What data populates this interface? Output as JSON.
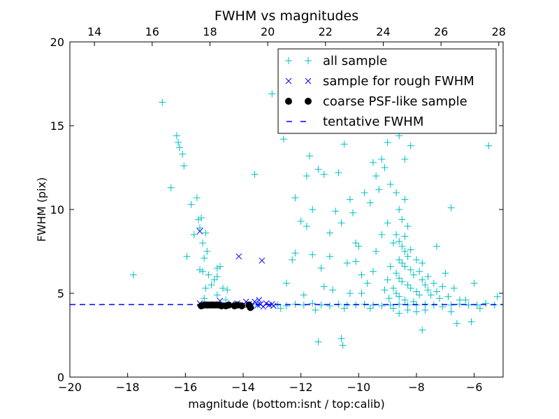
{
  "chart_data": {
    "type": "scatter",
    "title": "FWHM vs magnitudes",
    "xlabel": "magnitude (bottom:isnt / top:calib)",
    "ylabel": "FWHM (pix)",
    "xlim": [
      -20,
      -5
    ],
    "ylim": [
      0,
      20
    ],
    "x_ticks": [
      -20,
      -18,
      -16,
      -14,
      -12,
      -10,
      -8,
      -6
    ],
    "x_tick_labels": [
      "−20",
      "−18",
      "−16",
      "−14",
      "−12",
      "−10",
      "−8",
      "−6"
    ],
    "y_ticks": [
      0,
      5,
      10,
      15,
      20
    ],
    "y_tick_labels": [
      "0",
      "5",
      "10",
      "15",
      "20"
    ],
    "top_axis": {
      "offset": 33.15,
      "ticks": [
        14,
        16,
        18,
        20,
        22,
        24,
        26,
        28
      ],
      "tick_labels": [
        "14",
        "16",
        "18",
        "20",
        "22",
        "24",
        "26",
        "28"
      ]
    },
    "grid": false,
    "legend_position": "top-right",
    "colors": {
      "all": "#00bfbf",
      "rough": "#0000ff",
      "coarse": "#000000",
      "tentative": "#0000ff"
    },
    "series": [
      {
        "name": "all sample",
        "marker": "+",
        "points": [
          [
            -17.8,
            6.1
          ],
          [
            -16.8,
            16.4
          ],
          [
            -16.5,
            11.3
          ],
          [
            -16.3,
            14.4
          ],
          [
            -16.25,
            14.0
          ],
          [
            -16.2,
            13.7
          ],
          [
            -16.1,
            13.3
          ],
          [
            -16.05,
            12.6
          ],
          [
            -15.95,
            7.2
          ],
          [
            -15.8,
            10.3
          ],
          [
            -15.7,
            8.5
          ],
          [
            -15.6,
            10.7
          ],
          [
            -15.55,
            9.4
          ],
          [
            -15.5,
            8.9
          ],
          [
            -15.45,
            9.5
          ],
          [
            -15.4,
            8.0
          ],
          [
            -15.35,
            7.1
          ],
          [
            -15.3,
            8.6
          ],
          [
            -15.25,
            7.5
          ],
          [
            -15.5,
            6.4
          ],
          [
            -15.4,
            6.3
          ],
          [
            -15.3,
            5.3
          ],
          [
            -15.35,
            4.7
          ],
          [
            -15.0,
            5.8
          ],
          [
            -14.9,
            6.5
          ],
          [
            -14.8,
            6.6
          ],
          [
            -14.9,
            6.0
          ],
          [
            -14.7,
            5.3
          ],
          [
            -14.55,
            5.2
          ],
          [
            -15.2,
            6.1
          ],
          [
            -15.1,
            5.5
          ],
          [
            -14.9,
            4.9
          ],
          [
            -14.6,
            4.6
          ],
          [
            -13.6,
            12.1
          ],
          [
            -13.0,
            16.9
          ],
          [
            -12.6,
            14.2
          ],
          [
            -12.2,
            10.7
          ],
          [
            -12.0,
            9.3
          ],
          [
            -12.3,
            7.0
          ],
          [
            -12.5,
            5.6
          ],
          [
            -12.2,
            7.4
          ],
          [
            -11.8,
            9.0
          ],
          [
            -11.6,
            10.0
          ],
          [
            -11.8,
            12.0
          ],
          [
            -11.7,
            13.2
          ],
          [
            -11.4,
            12.4
          ],
          [
            -11.2,
            12.1
          ],
          [
            -11.6,
            7.3
          ],
          [
            -11.3,
            6.5
          ],
          [
            -11.2,
            5.4
          ],
          [
            -11.0,
            8.6
          ],
          [
            -11.0,
            7.2
          ],
          [
            -10.8,
            9.9
          ],
          [
            -10.7,
            12.2
          ],
          [
            -10.5,
            13.9
          ],
          [
            -10.6,
            9.2
          ],
          [
            -10.4,
            6.8
          ],
          [
            -10.3,
            5.0
          ],
          [
            -10.6,
            2.3
          ],
          [
            -10.55,
            1.9
          ],
          [
            -11.4,
            2.1
          ],
          [
            -10.3,
            10.6
          ],
          [
            -10.2,
            9.8
          ],
          [
            -10.1,
            8.0
          ],
          [
            -10.0,
            7.8
          ],
          [
            -9.9,
            6.1
          ],
          [
            -9.8,
            11.0
          ],
          [
            -9.6,
            10.4
          ],
          [
            -9.5,
            12.8
          ],
          [
            -9.4,
            12.0
          ],
          [
            -9.3,
            11.2
          ],
          [
            -9.2,
            13.0
          ],
          [
            -9.0,
            14.0
          ],
          [
            -9.1,
            12.5
          ],
          [
            -8.9,
            11.5
          ],
          [
            -8.8,
            15.3
          ],
          [
            -8.6,
            14.4
          ],
          [
            -8.4,
            13.0
          ],
          [
            -8.2,
            13.8
          ],
          [
            -9.4,
            7.5
          ],
          [
            -9.2,
            8.5
          ],
          [
            -9.0,
            9.2
          ],
          [
            -8.8,
            8.0
          ],
          [
            -9.7,
            5.6
          ],
          [
            -9.5,
            6.3
          ],
          [
            -9.9,
            5.0
          ],
          [
            -10.1,
            6.9
          ],
          [
            -10.9,
            5.2
          ],
          [
            -11.9,
            4.9
          ],
          [
            -8.7,
            8.5
          ],
          [
            -8.6,
            8.1
          ],
          [
            -8.5,
            7.8
          ],
          [
            -8.4,
            7.5
          ],
          [
            -8.3,
            7.2
          ],
          [
            -8.6,
            7.0
          ],
          [
            -8.5,
            6.8
          ],
          [
            -8.4,
            6.6
          ],
          [
            -8.2,
            6.4
          ],
          [
            -8.1,
            6.1
          ],
          [
            -8.7,
            6.2
          ],
          [
            -8.6,
            5.9
          ],
          [
            -8.5,
            5.7
          ],
          [
            -8.3,
            5.5
          ],
          [
            -8.2,
            5.3
          ],
          [
            -8.0,
            5.1
          ],
          [
            -7.9,
            4.9
          ],
          [
            -8.8,
            5.3
          ],
          [
            -8.7,
            5.0
          ],
          [
            -8.6,
            4.8
          ],
          [
            -8.4,
            4.6
          ],
          [
            -8.1,
            4.5
          ],
          [
            -7.8,
            5.8
          ],
          [
            -7.7,
            5.5
          ],
          [
            -7.6,
            5.2
          ],
          [
            -7.5,
            4.9
          ],
          [
            -7.9,
            6.3
          ],
          [
            -7.8,
            6.8
          ],
          [
            -8.0,
            7.0
          ],
          [
            -8.2,
            7.6
          ],
          [
            -8.4,
            8.4
          ],
          [
            -8.3,
            9.0
          ],
          [
            -8.5,
            9.4
          ],
          [
            -8.6,
            10.0
          ],
          [
            -8.4,
            10.6
          ],
          [
            -8.7,
            11.0
          ],
          [
            -7.6,
            6.0
          ],
          [
            -7.4,
            5.6
          ],
          [
            -7.3,
            5.1
          ],
          [
            -7.2,
            4.7
          ],
          [
            -7.1,
            5.4
          ],
          [
            -7.0,
            6.2
          ],
          [
            -7.3,
            7.8
          ],
          [
            -8.9,
            6.6
          ],
          [
            -9.0,
            5.8
          ],
          [
            -9.1,
            5.2
          ],
          [
            -8.95,
            4.7
          ],
          [
            -8.3,
            4.0
          ],
          [
            -8.0,
            3.9
          ],
          [
            -7.7,
            4.0
          ],
          [
            -7.8,
            2.8
          ],
          [
            -8.6,
            3.8
          ],
          [
            -6.8,
            10.1
          ],
          [
            -6.7,
            5.3
          ],
          [
            -6.9,
            4.8
          ],
          [
            -6.5,
            4.6
          ],
          [
            -6.3,
            4.6
          ],
          [
            -6.0,
            5.6
          ],
          [
            -5.5,
            13.8
          ],
          [
            -5.2,
            4.8
          ],
          [
            -6.6,
            3.2
          ],
          [
            -6.1,
            3.3
          ],
          [
            -6.8,
            3.9
          ],
          [
            -5.8,
            4.1
          ],
          [
            -15.3,
            4.35
          ],
          [
            -14.5,
            4.3
          ],
          [
            -13.5,
            4.3
          ],
          [
            -12.8,
            4.3
          ],
          [
            -12.5,
            4.25
          ],
          [
            -12.2,
            4.35
          ],
          [
            -11.9,
            4.3
          ],
          [
            -11.6,
            4.4
          ],
          [
            -11.3,
            4.3
          ],
          [
            -11.0,
            4.25
          ],
          [
            -10.7,
            4.35
          ],
          [
            -10.4,
            4.3
          ],
          [
            -10.1,
            4.3
          ],
          [
            -9.8,
            4.35
          ],
          [
            -9.5,
            4.3
          ],
          [
            -9.2,
            4.25
          ],
          [
            -8.9,
            4.3
          ],
          [
            -8.6,
            4.35
          ],
          [
            -8.3,
            4.3
          ],
          [
            -8.0,
            4.3
          ],
          [
            -7.7,
            4.35
          ],
          [
            -7.4,
            4.3
          ],
          [
            -7.1,
            4.2
          ],
          [
            -6.8,
            4.3
          ],
          [
            -6.5,
            4.35
          ],
          [
            -6.2,
            4.3
          ],
          [
            -5.9,
            4.3
          ],
          [
            -5.6,
            4.4
          ],
          [
            -5.3,
            4.3
          ],
          [
            -12.7,
            4.1
          ],
          [
            -11.5,
            4.0
          ],
          [
            -10.5,
            4.1
          ],
          [
            -9.6,
            4.1
          ],
          [
            -8.8,
            4.1
          ]
        ]
      },
      {
        "name": "sample for rough FWHM",
        "marker": "x",
        "points": [
          [
            -15.5,
            8.7
          ],
          [
            -14.15,
            7.2
          ],
          [
            -13.35,
            6.95
          ],
          [
            -15.5,
            4.4
          ],
          [
            -14.8,
            4.55
          ],
          [
            -14.4,
            4.35
          ],
          [
            -14.2,
            4.4
          ],
          [
            -14.0,
            4.3
          ],
          [
            -13.9,
            4.5
          ],
          [
            -13.8,
            4.35
          ],
          [
            -13.7,
            4.25
          ],
          [
            -13.6,
            4.5
          ],
          [
            -13.5,
            4.3
          ],
          [
            -13.45,
            4.6
          ],
          [
            -13.4,
            4.35
          ],
          [
            -13.3,
            4.2
          ],
          [
            -13.2,
            4.4
          ],
          [
            -13.1,
            4.3
          ],
          [
            -13.0,
            4.35
          ],
          [
            -12.95,
            4.25
          ],
          [
            -14.6,
            4.3
          ],
          [
            -15.0,
            4.35
          ]
        ]
      },
      {
        "name": "coarse PSF-like sample",
        "marker": "o",
        "points": [
          [
            -15.45,
            4.25
          ],
          [
            -15.35,
            4.3
          ],
          [
            -15.25,
            4.3
          ],
          [
            -15.15,
            4.3
          ],
          [
            -15.05,
            4.3
          ],
          [
            -14.95,
            4.3
          ],
          [
            -14.85,
            4.3
          ],
          [
            -14.75,
            4.25
          ],
          [
            -14.6,
            4.25
          ],
          [
            -14.5,
            4.3
          ],
          [
            -14.3,
            4.25
          ],
          [
            -14.2,
            4.3
          ],
          [
            -14.05,
            4.25
          ],
          [
            -13.8,
            4.3
          ],
          [
            -13.75,
            4.15
          ]
        ]
      },
      {
        "name": "tentative FWHM",
        "marker": "dashed-line",
        "value": 4.33
      }
    ]
  }
}
